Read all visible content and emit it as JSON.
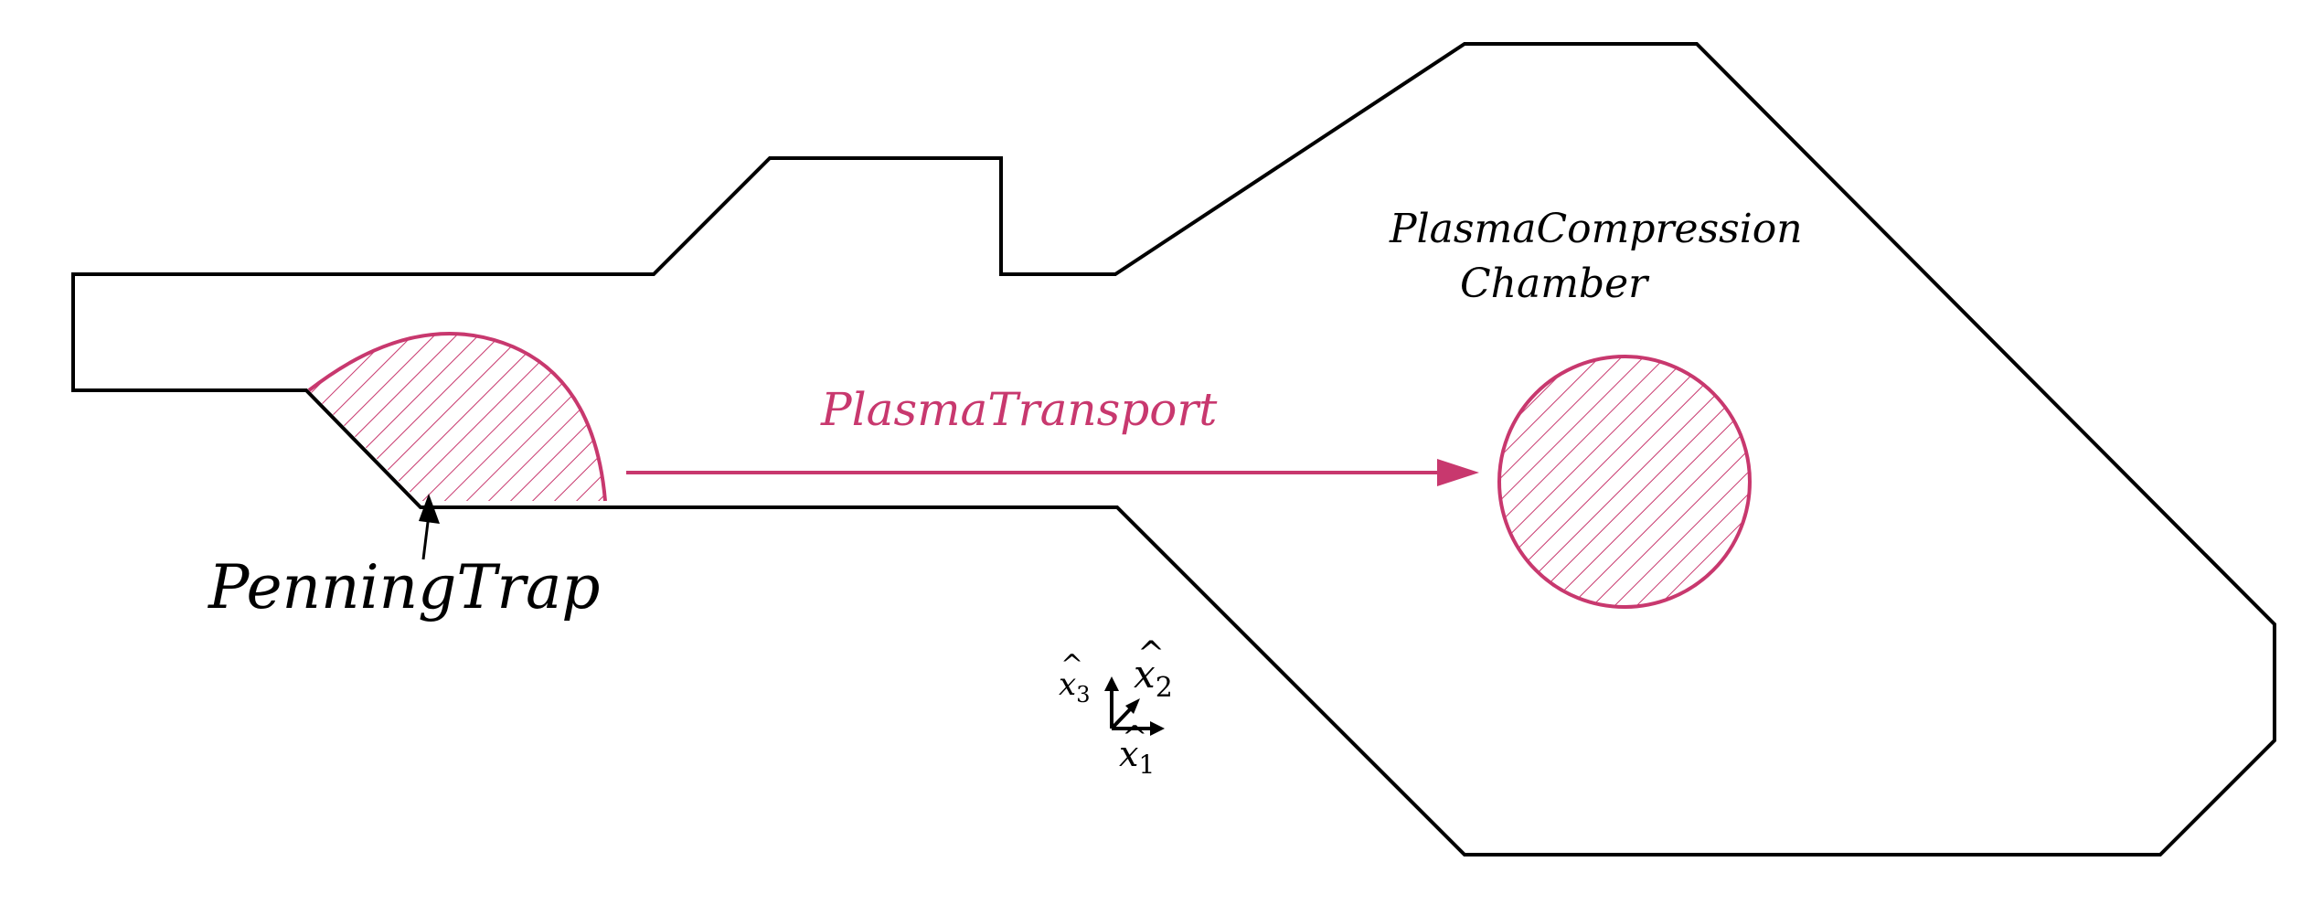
{
  "colors": {
    "outline": "#000000",
    "accent": "#c8386e"
  },
  "labels": {
    "penning_trap": "PenningTrap",
    "plasma_transport": "PlasmaTransport",
    "compression_line1": "PlasmaCompression",
    "compression_line2": "Chamber"
  },
  "axes": {
    "x1": {
      "base": "x",
      "sub": "1",
      "hat": "^"
    },
    "x2": {
      "base": "x",
      "sub": "2",
      "hat": "^"
    },
    "x3": {
      "base": "x",
      "sub": "3",
      "hat": "^"
    }
  }
}
